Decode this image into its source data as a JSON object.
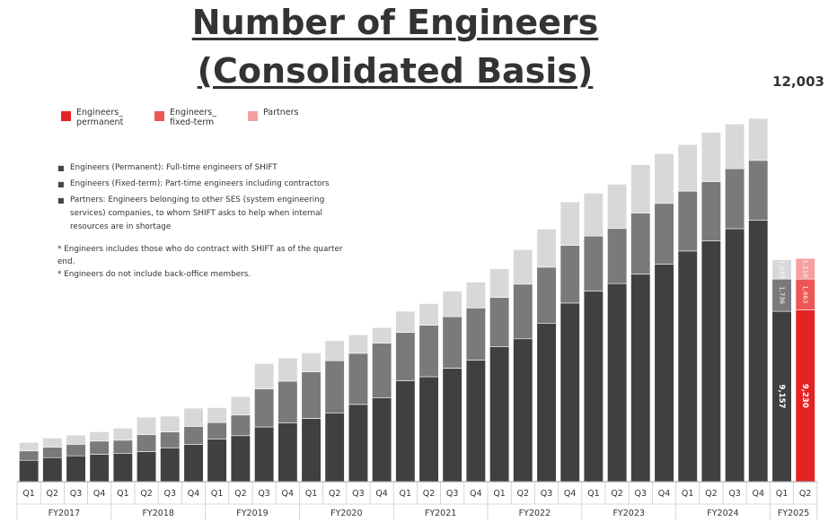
{
  "title_line1": "Number of Engineers",
  "title_line2": "(Consolidated Basis)",
  "latest_total": "12,003",
  "legend": [
    {
      "label": "Engineers_\npermanent",
      "color": "#e52222"
    },
    {
      "label": "Engineers_\nfixed-term",
      "color": "#ee5555"
    },
    {
      "label": "Partners",
      "color": "#f5a0a0"
    }
  ],
  "definitions": [
    "Engineers (Permanent): Full-time engineers of SHIFT",
    "Engineers (Fixed-term): Part-time engineers including contractors",
    "Partners: Engineers belonging to other SES (system engineering services) companies, to whom SHIFT asks to help when internal resources are in shortage"
  ],
  "footnotes": [
    "* Engineers includes those who do contract with SHIFT as of the quarter end.",
    "* Engineers do not include back-office members."
  ],
  "chart_data": {
    "type": "bar",
    "stacked": true,
    "title": "Number of Engineers (Consolidated Basis)",
    "quarters": [
      "Q1",
      "Q2",
      "Q3",
      "Q4",
      "Q1",
      "Q2",
      "Q3",
      "Q4",
      "Q1",
      "Q2",
      "Q3",
      "Q4",
      "Q1",
      "Q2",
      "Q3",
      "Q4",
      "Q1",
      "Q2",
      "Q3",
      "Q4",
      "Q1",
      "Q2",
      "Q3",
      "Q4",
      "Q1",
      "Q2",
      "Q3",
      "Q4",
      "Q1",
      "Q2",
      "Q3",
      "Q4",
      "Q1",
      "Q2"
    ],
    "fiscal_years": [
      {
        "label": "FY2017",
        "quarters": 4
      },
      {
        "label": "FY2018",
        "quarters": 4
      },
      {
        "label": "FY2019",
        "quarters": 4
      },
      {
        "label": "FY2020",
        "quarters": 4
      },
      {
        "label": "FY2021",
        "quarters": 4
      },
      {
        "label": "FY2022",
        "quarters": 4
      },
      {
        "label": "FY2023",
        "quarters": 4
      },
      {
        "label": "FY2024",
        "quarters": 4
      },
      {
        "label": "FY2025",
        "quarters": 2
      }
    ],
    "series": [
      {
        "name": "Engineers_permanent",
        "color_default": "#404040",
        "color_latest": "#e52222",
        "values": [
          1150,
          1290,
          1390,
          1470,
          1530,
          1620,
          1820,
          2000,
          2280,
          2470,
          2940,
          3150,
          3400,
          3700,
          4150,
          4500,
          5420,
          5640,
          6100,
          6540,
          7260,
          7680,
          8520,
          9600,
          10240,
          10650,
          11150,
          11700,
          12400,
          12950,
          13600,
          14050,
          9157,
          9230
        ]
      },
      {
        "name": "Engineers_fixed-term",
        "color_default": "#7a7a7a",
        "color_latest": "#ee5555",
        "values": [
          500,
          560,
          620,
          710,
          700,
          900,
          850,
          970,
          900,
          1110,
          2050,
          2250,
          2500,
          2800,
          2750,
          2950,
          2600,
          2770,
          2770,
          2800,
          2640,
          2940,
          3010,
          3100,
          2960,
          2960,
          3290,
          3260,
          3220,
          3180,
          3230,
          3220,
          1736,
          1663
        ]
      },
      {
        "name": "Partners",
        "color_default": "#d8d8d8",
        "color_latest": "#f5a0a0",
        "values": [
          450,
          500,
          490,
          500,
          650,
          950,
          850,
          980,
          800,
          990,
          1360,
          1250,
          1020,
          1080,
          1000,
          830,
          1140,
          1160,
          1370,
          1390,
          1540,
          1850,
          2050,
          2340,
          2310,
          2380,
          2600,
          2680,
          2500,
          2650,
          2400,
          2260,
          1033,
          1110
        ]
      }
    ],
    "segment_labels": {
      "32": {
        "permanent": "9,157",
        "fixed": "1,736",
        "partners": "1,033"
      },
      "33": {
        "permanent": "9,230",
        "fixed": "1,663",
        "partners": "1,110"
      }
    },
    "ylim": [
      0,
      23000
    ],
    "xlabel": "",
    "ylabel": ""
  }
}
